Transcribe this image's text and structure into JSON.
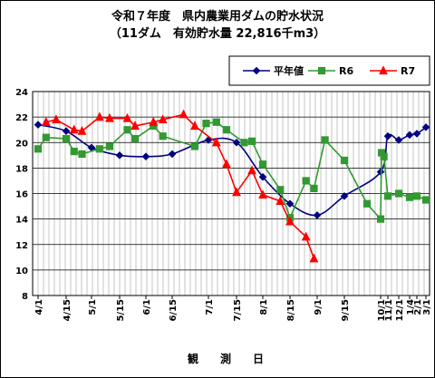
{
  "chart_data": {
    "type": "line",
    "title": "令和７年度　県内農業用ダムの貯水状況",
    "subtitle": "（11ダム　有効貯水量 22,816千m3）",
    "xlabel": "観　測　日",
    "ylabel": "",
    "ylim": [
      8,
      24
    ],
    "y_ticks": [
      "8",
      "10",
      "12",
      "14",
      "16",
      "18",
      "20",
      "22",
      "24"
    ],
    "x_range": [
      "4/1",
      "3/1"
    ],
    "x_tick_labels": [
      {
        "label": "4/1",
        "date": "4/1"
      },
      {
        "label": "4/15",
        "date": "4/15"
      },
      {
        "label": "5/1",
        "date": "5/1"
      },
      {
        "label": "5/15",
        "date": "5/15"
      },
      {
        "label": "6/1",
        "date": "6/1"
      },
      {
        "label": "6/15",
        "date": "6/15"
      },
      {
        "label": "7/1",
        "date": "7/1"
      },
      {
        "label": "7/15",
        "date": "7/15"
      },
      {
        "label": "8/1",
        "date": "8/1"
      },
      {
        "label": "8/15",
        "date": "8/15"
      },
      {
        "label": "9/1",
        "date": "9/1"
      },
      {
        "label": "9/15",
        "date": "9/15"
      },
      {
        "label": "10/1",
        "date": "10/1"
      },
      {
        "label": "11/1",
        "date": "11/1"
      },
      {
        "label": "12/1",
        "date": "12/1"
      },
      {
        "label": "1/4",
        "date": "1/4"
      },
      {
        "label": "2/1",
        "date": "2/1"
      },
      {
        "label": "3/1",
        "date": "3/1"
      }
    ],
    "grid": true,
    "legend_position": "top-right",
    "series": [
      {
        "name": "平年値",
        "color": "#000080",
        "marker": "diamond",
        "points": [
          {
            "x": "4/1",
            "y": 21.4
          },
          {
            "x": "4/15",
            "y": 20.9
          },
          {
            "x": "5/1",
            "y": 19.6
          },
          {
            "x": "5/15",
            "y": 19.0
          },
          {
            "x": "6/1",
            "y": 18.9
          },
          {
            "x": "6/15",
            "y": 19.1
          },
          {
            "x": "7/1",
            "y": 20.2
          },
          {
            "x": "7/15",
            "y": 20.0
          },
          {
            "x": "8/1",
            "y": 17.3
          },
          {
            "x": "8/15",
            "y": 15.2
          },
          {
            "x": "9/1",
            "y": 14.3
          },
          {
            "x": "9/15",
            "y": 15.8
          },
          {
            "x": "10/1",
            "y": 17.7
          },
          {
            "x": "11/1",
            "y": 20.5
          },
          {
            "x": "12/1",
            "y": 20.2
          },
          {
            "x": "1/4",
            "y": 20.6
          },
          {
            "x": "2/1",
            "y": 20.7
          },
          {
            "x": "3/1",
            "y": 21.2
          }
        ]
      },
      {
        "name": "R6",
        "color": "#339933",
        "marker": "square",
        "points": [
          {
            "x": "4/1",
            "y": 19.5
          },
          {
            "x": "4/5",
            "y": 20.4
          },
          {
            "x": "4/15",
            "y": 20.3
          },
          {
            "x": "4/20",
            "y": 19.3
          },
          {
            "x": "4/25",
            "y": 19.1
          },
          {
            "x": "5/5",
            "y": 19.5
          },
          {
            "x": "5/10",
            "y": 19.7
          },
          {
            "x": "5/20",
            "y": 21.0
          },
          {
            "x": "5/25",
            "y": 20.3
          },
          {
            "x": "6/5",
            "y": 21.3
          },
          {
            "x": "6/10",
            "y": 20.5
          },
          {
            "x": "6/25",
            "y": 19.7
          },
          {
            "x": "6/30",
            "y": 21.5
          },
          {
            "x": "7/5",
            "y": 21.6
          },
          {
            "x": "7/10",
            "y": 21.0
          },
          {
            "x": "7/20",
            "y": 20.0
          },
          {
            "x": "7/25",
            "y": 20.1
          },
          {
            "x": "8/1",
            "y": 18.3
          },
          {
            "x": "8/10",
            "y": 16.3
          },
          {
            "x": "8/15",
            "y": 14.1
          },
          {
            "x": "8/25",
            "y": 17.0
          },
          {
            "x": "8/30",
            "y": 16.4
          },
          {
            "x": "9/5",
            "y": 20.2
          },
          {
            "x": "9/15",
            "y": 18.6
          },
          {
            "x": "9/25",
            "y": 15.2
          },
          {
            "x": "10/1",
            "y": 14.0
          },
          {
            "x": "10/5",
            "y": 19.2
          },
          {
            "x": "10/15",
            "y": 18.9
          },
          {
            "x": "11/1",
            "y": 15.8
          },
          {
            "x": "12/1",
            "y": 16.0
          },
          {
            "x": "1/4",
            "y": 15.7
          },
          {
            "x": "2/1",
            "y": 15.8
          },
          {
            "x": "3/1",
            "y": 15.5
          }
        ]
      },
      {
        "name": "R7",
        "color": "#ff0000",
        "marker": "triangle",
        "points": [
          {
            "x": "4/5",
            "y": 21.6
          },
          {
            "x": "4/10",
            "y": 21.8
          },
          {
            "x": "4/20",
            "y": 21.0
          },
          {
            "x": "4/25",
            "y": 20.9
          },
          {
            "x": "5/5",
            "y": 22.0
          },
          {
            "x": "5/10",
            "y": 21.9
          },
          {
            "x": "5/20",
            "y": 21.9
          },
          {
            "x": "5/25",
            "y": 21.3
          },
          {
            "x": "6/5",
            "y": 21.6
          },
          {
            "x": "6/10",
            "y": 21.8
          },
          {
            "x": "6/20",
            "y": 22.2
          },
          {
            "x": "6/25",
            "y": 21.3
          },
          {
            "x": "7/5",
            "y": 20.0
          },
          {
            "x": "7/10",
            "y": 18.3
          },
          {
            "x": "7/15",
            "y": 16.1
          },
          {
            "x": "7/25",
            "y": 17.8
          },
          {
            "x": "8/1",
            "y": 15.9
          },
          {
            "x": "8/10",
            "y": 15.4
          },
          {
            "x": "8/15",
            "y": 13.8
          },
          {
            "x": "8/25",
            "y": 12.6
          },
          {
            "x": "8/30",
            "y": 10.9
          }
        ]
      }
    ]
  }
}
